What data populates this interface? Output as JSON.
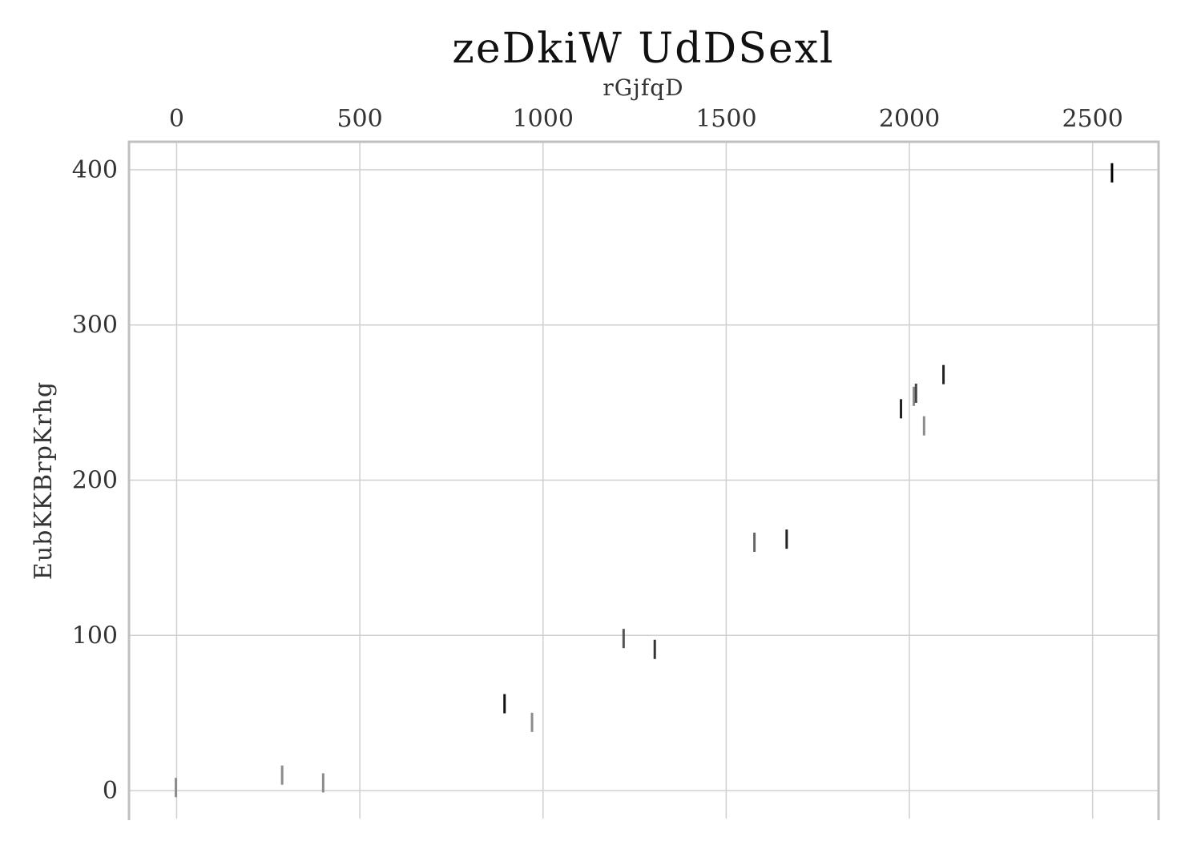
{
  "chart_data": {
    "type": "scatter",
    "title": "zeDkiW UdDSexl",
    "xlabel": "rGjfqD",
    "ylabel": "EubKKBrpKrhg",
    "x_axis_position": "top",
    "xlim": [
      -130,
      2680
    ],
    "ylim": [
      -18,
      418
    ],
    "xticks": [
      0,
      500,
      1000,
      1500,
      2000,
      2500
    ],
    "yticks": [
      0,
      100,
      200,
      300,
      400
    ],
    "grid": true,
    "marker": "vertical-line",
    "points": [
      {
        "x": -2,
        "y": 2,
        "shade": "#8c8c8c"
      },
      {
        "x": 288,
        "y": 10,
        "shade": "#8c8c8c"
      },
      {
        "x": 400,
        "y": 5,
        "shade": "#8c8c8c"
      },
      {
        "x": 895,
        "y": 56,
        "shade": "#111111"
      },
      {
        "x": 970,
        "y": 44,
        "shade": "#8c8c8c"
      },
      {
        "x": 1220,
        "y": 98,
        "shade": "#555555"
      },
      {
        "x": 1305,
        "y": 91,
        "shade": "#333333"
      },
      {
        "x": 1577,
        "y": 160,
        "shade": "#666666"
      },
      {
        "x": 1665,
        "y": 162,
        "shade": "#222222"
      },
      {
        "x": 1977,
        "y": 246,
        "shade": "#222222"
      },
      {
        "x": 2012,
        "y": 254,
        "shade": "#8c8c8c"
      },
      {
        "x": 2018,
        "y": 256,
        "shade": "#444444"
      },
      {
        "x": 2040,
        "y": 235,
        "shade": "#8c8c8c"
      },
      {
        "x": 2093,
        "y": 268,
        "shade": "#222222"
      },
      {
        "x": 2553,
        "y": 398,
        "shade": "#000000"
      }
    ]
  }
}
